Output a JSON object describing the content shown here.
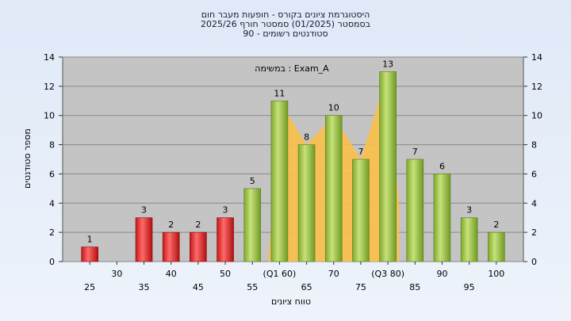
{
  "chart_data": {
    "type": "bar",
    "title_lines": [
      "היסטוגרמת ציונים בקורס - חופעות מעבר חום",
      "בסמסטר  (01/2025)  סמסטר חורף 2025/26",
      "סטודנטים רשומים - 90"
    ],
    "annotation": "במשימה : Exam_A",
    "xlabel": "טווח ציונים",
    "ylabel": "מספר סטודנטים",
    "ylim": [
      0,
      14
    ],
    "ytick_step": 2,
    "grid": true,
    "categories": [
      "25",
      "30",
      "35",
      "40",
      "45",
      "50",
      "55",
      "(Q1 60)",
      "65",
      "70",
      "75",
      "(Q3 80)",
      "85",
      "90",
      "95",
      "100"
    ],
    "values": [
      1,
      0,
      3,
      2,
      2,
      3,
      5,
      11,
      8,
      10,
      7,
      13,
      7,
      6,
      3,
      2
    ],
    "data_labels": [
      "1",
      "",
      "3",
      "2",
      "2",
      "3",
      "5",
      "11",
      "8",
      "10",
      "7",
      "13",
      "7",
      "6",
      "3",
      "2"
    ],
    "failing_threshold": 55,
    "colors": {
      "fail": "#e02020",
      "pass": "#8fb83a",
      "interquartile_area": "#fbc14a",
      "plot_bg": "#c4c4c4",
      "grid": "#8a8a8a"
    }
  }
}
